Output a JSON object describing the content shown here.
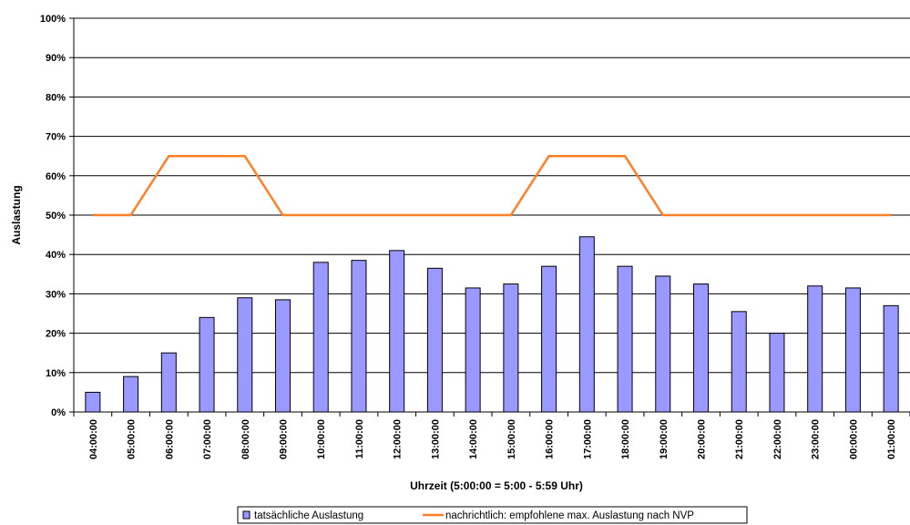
{
  "chart_data": {
    "type": "bar",
    "xlabel": "Uhrzeit (5:00:00 = 5:00 - 5:59 Uhr)",
    "ylabel": "Auslastung",
    "ylim": [
      0,
      100
    ],
    "y_ticks": [
      "0%",
      "10%",
      "20%",
      "30%",
      "40%",
      "50%",
      "60%",
      "70%",
      "80%",
      "90%",
      "100%"
    ],
    "categories": [
      "04:00:00",
      "05:00:00",
      "06:00:00",
      "07:00:00",
      "08:00:00",
      "09:00:00",
      "10:00:00",
      "11:00:00",
      "12:00:00",
      "13:00:00",
      "14:00:00",
      "15:00:00",
      "16:00:00",
      "17:00:00",
      "18:00:00",
      "19:00:00",
      "20:00:00",
      "21:00:00",
      "22:00:00",
      "23:00:00",
      "00:00:00",
      "01:00:00"
    ],
    "series": [
      {
        "name": "tatsächliche Auslastung",
        "type": "bar",
        "color": "#9999ff",
        "values": [
          5,
          9,
          15,
          24,
          29,
          28.5,
          38,
          38.5,
          41,
          36.5,
          31.5,
          32.5,
          37,
          44.5,
          37,
          34.5,
          32.5,
          25.5,
          20,
          32,
          31.5,
          27
        ]
      },
      {
        "name": "nachrichtlich: empfohlene max. Auslastung nach NVP",
        "type": "line",
        "color": "#ff7f27",
        "values": [
          50,
          50,
          65,
          65,
          65,
          50,
          50,
          50,
          50,
          50,
          50,
          50,
          65,
          65,
          65,
          50,
          50,
          50,
          50,
          50,
          50,
          50
        ]
      }
    ],
    "grid": true,
    "legend_position": "bottom"
  }
}
